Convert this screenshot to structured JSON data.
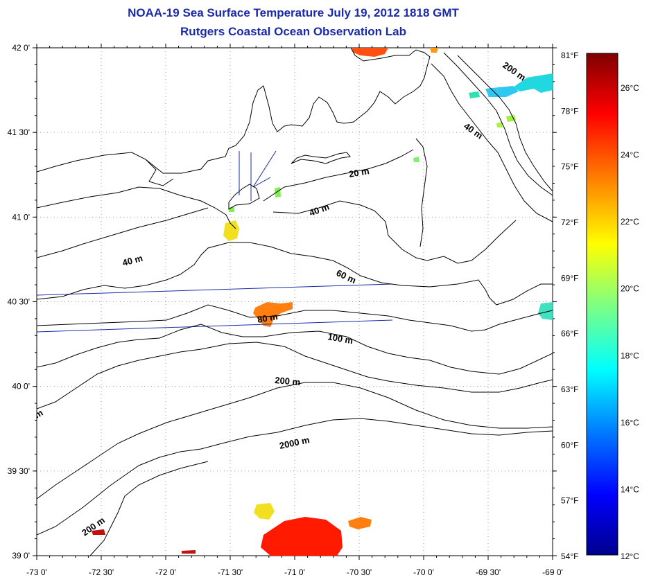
{
  "title": "NOAA-19 Sea Surface Temperature July 19, 2012 1818 GMT",
  "subtitle": "Rutgers Coastal Ocean Observation Lab",
  "map": {
    "lat_labels": [
      "42 0'",
      "41 30'",
      "41 0'",
      "40 30'",
      "40 0'",
      "39 30'",
      "39 0'"
    ],
    "lon_labels": [
      "-73 0'",
      "-72 30'",
      "-72 0'",
      "-71 30'",
      "-71 0'",
      "-70 30'",
      "-70 0'",
      "-69 30'",
      "-69 0'"
    ],
    "lat_range": [
      39.0,
      42.0
    ],
    "lon_range": [
      -73.0,
      -69.0
    ],
    "grid": "dotted",
    "contour_labels": [
      "20 m",
      "40 m",
      "40 m",
      "60 m",
      "80 m",
      "100 m",
      "200 m",
      "2000 m",
      "200 m",
      "200 m",
      "m"
    ]
  },
  "colorbar": {
    "fahrenheit_labels": [
      "81°F",
      "78°F",
      "75°F",
      "72°F",
      "69°F",
      "66°F",
      "63°F",
      "60°F",
      "57°F",
      "54°F"
    ],
    "celsius_labels": [
      "26°C",
      "24°C",
      "22°C",
      "20°C",
      "18°C",
      "16°C",
      "14°C",
      "12°C"
    ],
    "range_c": [
      12,
      27.2
    ],
    "colors": [
      "#00008f",
      "#0000ff",
      "#0080ff",
      "#00ffff",
      "#80ff80",
      "#ffff00",
      "#ff8000",
      "#ff0000",
      "#800000"
    ]
  }
}
